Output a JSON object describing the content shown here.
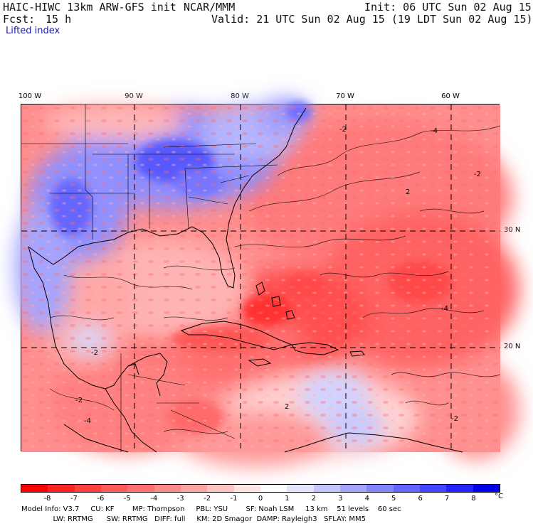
{
  "header": {
    "model": "HAIC-HIWC 13km ARW-GFS init",
    "org": "NCAR/MMM",
    "init": "Init: 06 UTC Sun 02 Aug 15",
    "fcst_label": "Fcst:",
    "fcst_value": "15 h",
    "valid": "Valid: 21 UTC Sun 02 Aug 15 (19 LDT Sun 02 Aug 15)",
    "field": "Lifted index"
  },
  "axes": {
    "lon_labels": [
      "100 W",
      "90 W",
      "80 W",
      "70 W",
      "60 W"
    ],
    "lat_labels": [
      "30 N",
      "20 N"
    ]
  },
  "map": {
    "contour_labels": [
      "-2",
      "-2",
      "-2",
      "-4",
      "-4",
      "-2",
      "-4",
      "2",
      "2",
      "-2"
    ]
  },
  "colorbar": {
    "ticks": [
      "-8",
      "-7",
      "-6",
      "-5",
      "-4",
      "-3",
      "-2",
      "-1",
      "0",
      "1",
      "2",
      "3",
      "4",
      "5",
      "6",
      "7",
      "8"
    ],
    "unit": "°C",
    "colors": [
      "#ff0000",
      "#ff2222",
      "#ff4040",
      "#ff5a5a",
      "#ff7070",
      "#ff8a8a",
      "#ffa4a4",
      "#ffc4c4",
      "#ffe4e4",
      "#ffffff",
      "#e4e4ff",
      "#c4c4ff",
      "#a4a4ff",
      "#8484ff",
      "#6464ff",
      "#4444ff",
      "#2222ff",
      "#0000f0"
    ]
  },
  "footer": {
    "line1": "Model Info: V3.7     CU: KF        MP: Thompson     PBL: YSU        SF: Noah LSM     13 km    51 levels    60 sec",
    "line2": "              LW: RRTMG      SW: RRTMG   DIFF: full     KM: 2D Smagor  DAMP: Rayleigh3   SFLAY: MM5"
  }
}
